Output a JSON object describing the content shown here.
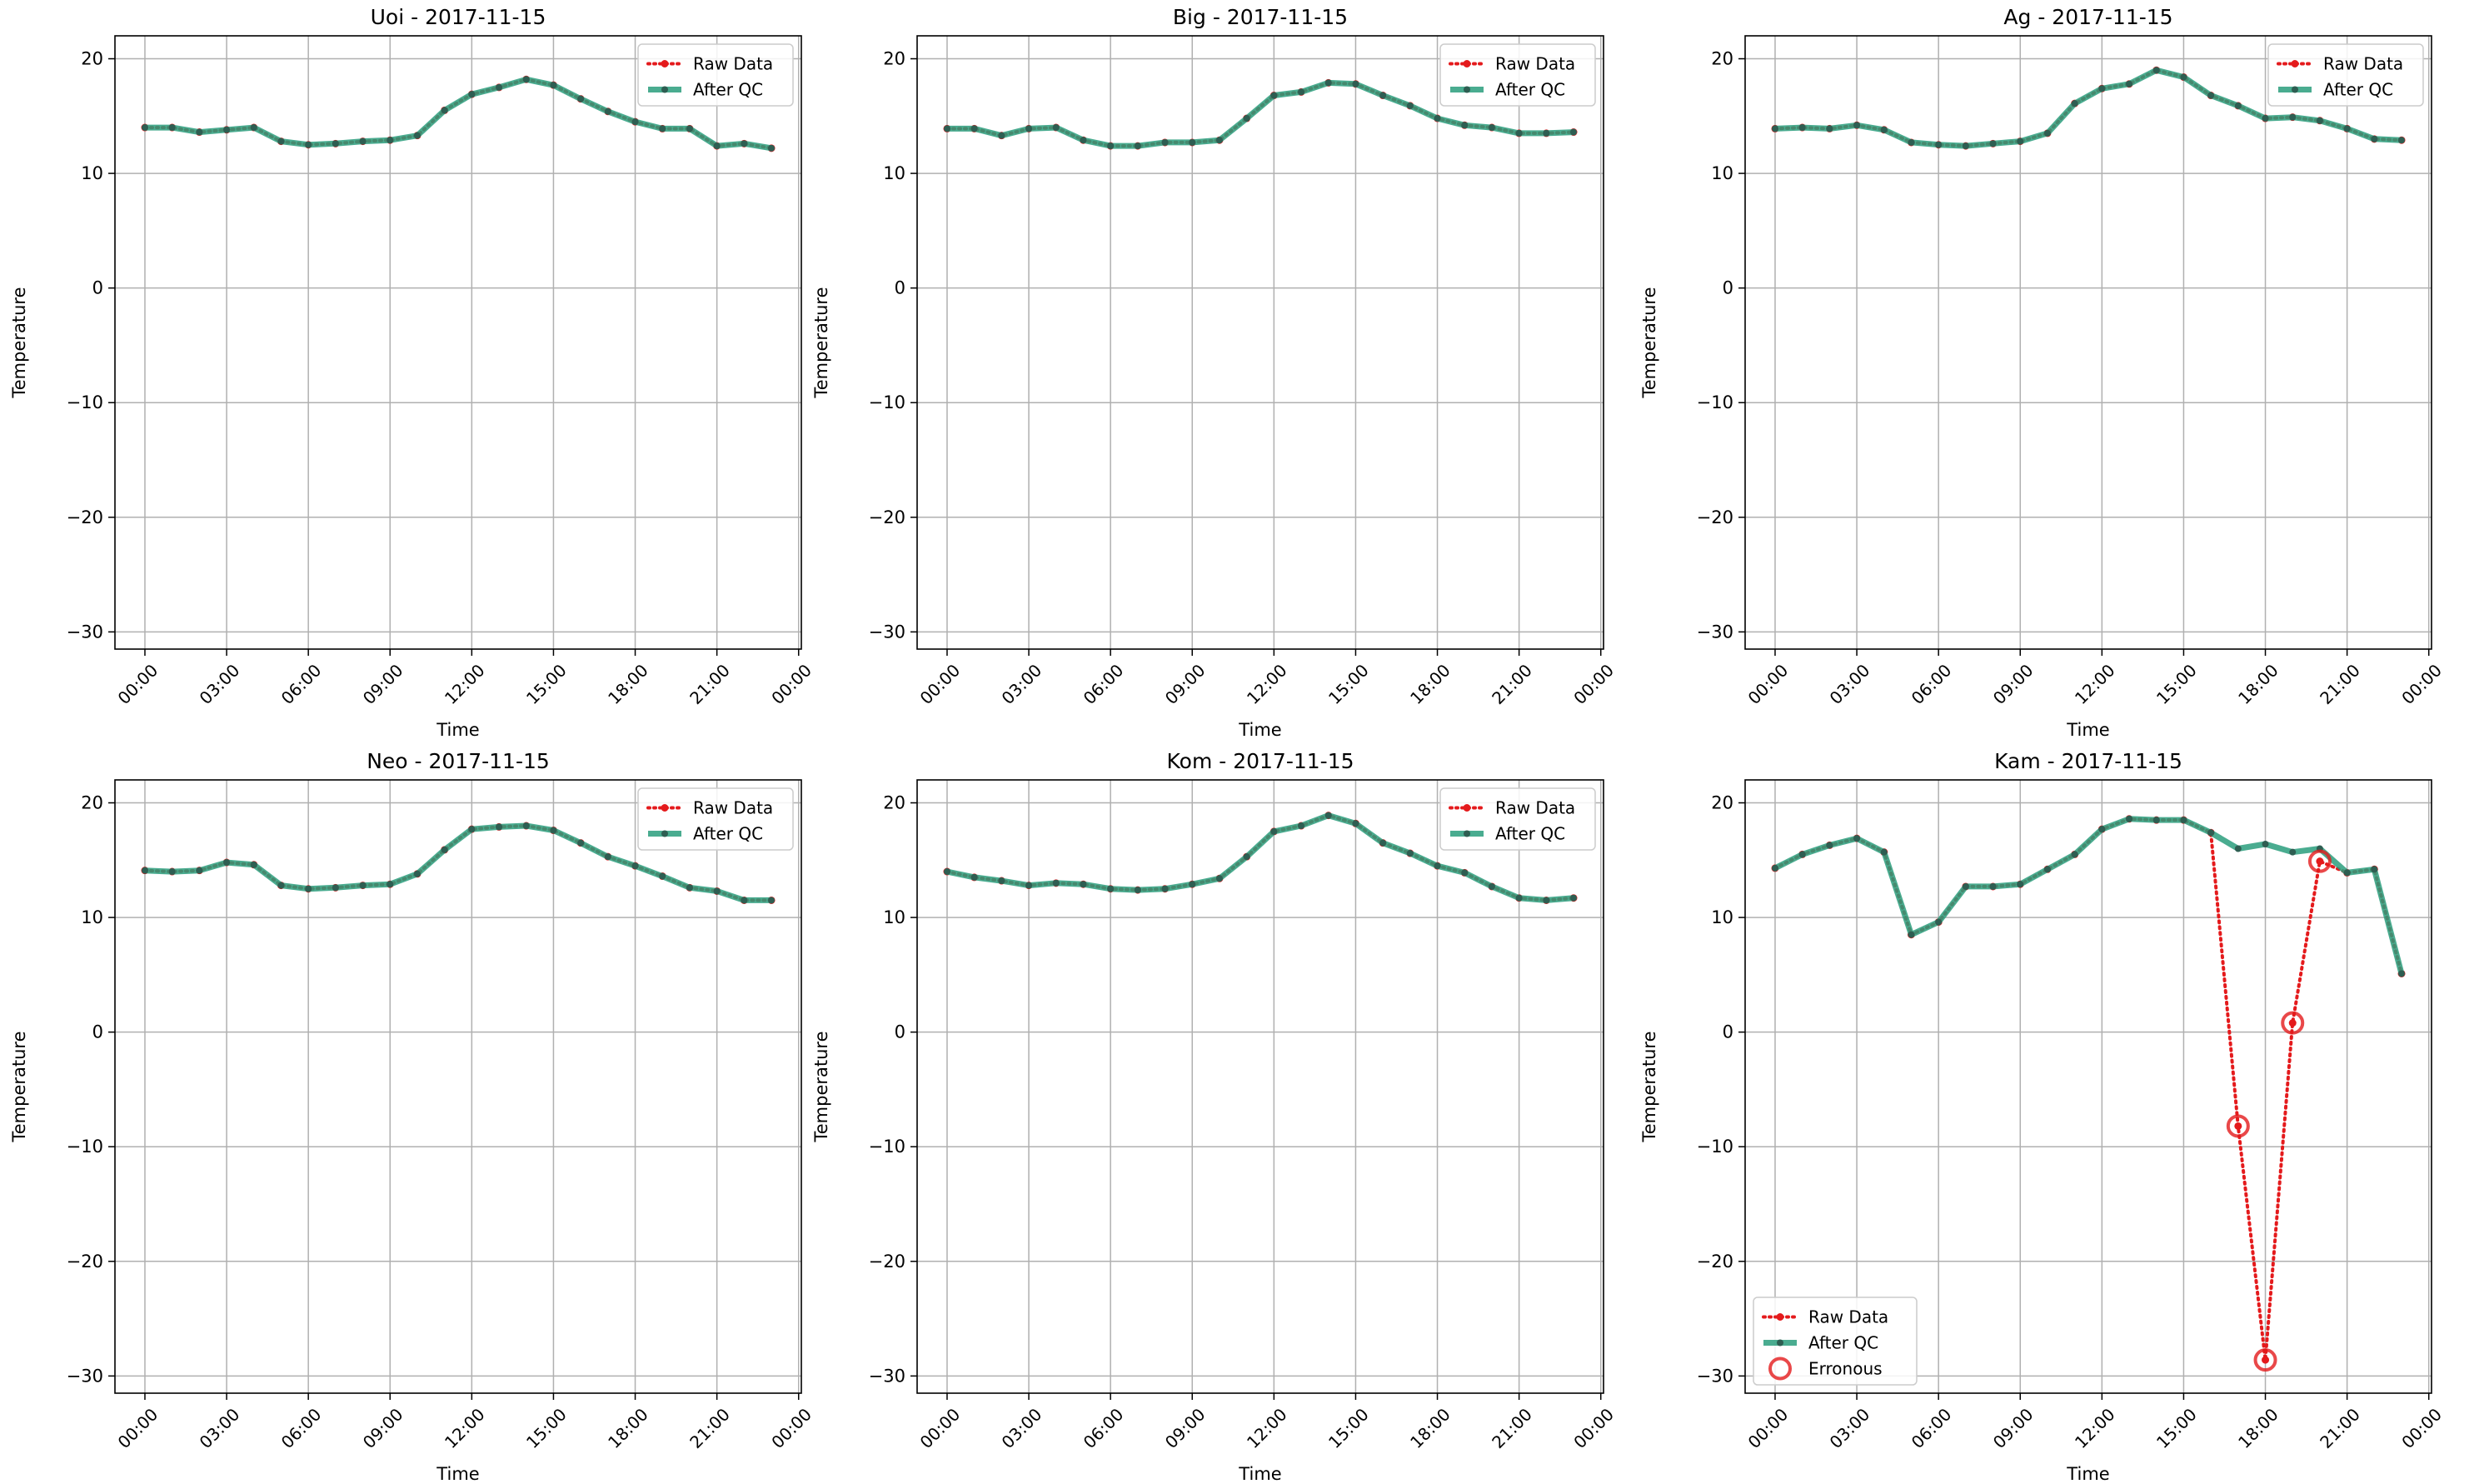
{
  "colors": {
    "raw": "#e41a1c",
    "qc": "#2a9d7c",
    "qc_marker": "#2e5e52",
    "erroneous": "#e41a1c",
    "grid": "#b0b0b0"
  },
  "legend_labels": {
    "raw": "Raw Data",
    "qc": "After QC",
    "erroneous": "Erronous"
  },
  "chart_data": [
    {
      "type": "line",
      "title": "Uoi - 2017-11-15",
      "xlabel": "Time",
      "ylabel": "Temperature",
      "xlim": [
        -1.1,
        24.1
      ],
      "ylim": [
        -31.5,
        22
      ],
      "x_ticks": [
        0,
        3,
        6,
        9,
        12,
        15,
        18,
        21,
        24
      ],
      "x_tick_labels": [
        "00:00",
        "03:00",
        "06:00",
        "09:00",
        "12:00",
        "15:00",
        "18:00",
        "21:00",
        "00:00"
      ],
      "y_ticks": [
        -30,
        -20,
        -10,
        0,
        10,
        20
      ],
      "y_tick_labels": [
        "−30",
        "−20",
        "−10",
        "0",
        "10",
        "20"
      ],
      "legend_position": "upper right",
      "grid": true,
      "hours": [
        0,
        1,
        2,
        3,
        4,
        5,
        6,
        7,
        8,
        9,
        10,
        11,
        12,
        13,
        14,
        15,
        16,
        17,
        18,
        19,
        20,
        21,
        22,
        23
      ],
      "series": [
        {
          "name": "Raw Data",
          "values": [
            14.0,
            14.0,
            13.6,
            13.8,
            14.0,
            12.8,
            12.5,
            12.6,
            12.8,
            12.9,
            13.3,
            15.5,
            16.9,
            17.5,
            18.2,
            17.7,
            16.5,
            15.4,
            14.5,
            13.9,
            13.9,
            12.4,
            12.6,
            12.2
          ]
        },
        {
          "name": "After QC",
          "values": [
            14.0,
            14.0,
            13.6,
            13.8,
            14.0,
            12.8,
            12.5,
            12.6,
            12.8,
            12.9,
            13.3,
            15.5,
            16.9,
            17.5,
            18.2,
            17.7,
            16.5,
            15.4,
            14.5,
            13.9,
            13.9,
            12.4,
            12.6,
            12.2
          ]
        }
      ],
      "erroneous": []
    },
    {
      "type": "line",
      "title": "Big - 2017-11-15",
      "xlabel": "Time",
      "ylabel": "Temperature",
      "xlim": [
        -1.1,
        24.1
      ],
      "ylim": [
        -31.5,
        22
      ],
      "x_ticks": [
        0,
        3,
        6,
        9,
        12,
        15,
        18,
        21,
        24
      ],
      "x_tick_labels": [
        "00:00",
        "03:00",
        "06:00",
        "09:00",
        "12:00",
        "15:00",
        "18:00",
        "21:00",
        "00:00"
      ],
      "y_ticks": [
        -30,
        -20,
        -10,
        0,
        10,
        20
      ],
      "y_tick_labels": [
        "−30",
        "−20",
        "−10",
        "0",
        "10",
        "20"
      ],
      "legend_position": "upper right",
      "grid": true,
      "hours": [
        0,
        1,
        2,
        3,
        4,
        5,
        6,
        7,
        8,
        9,
        10,
        11,
        12,
        13,
        14,
        15,
        16,
        17,
        18,
        19,
        20,
        21,
        22,
        23
      ],
      "series": [
        {
          "name": "Raw Data",
          "values": [
            13.9,
            13.9,
            13.3,
            13.9,
            14.0,
            12.9,
            12.4,
            12.4,
            12.7,
            12.7,
            12.9,
            14.8,
            16.8,
            17.1,
            17.9,
            17.8,
            16.8,
            15.9,
            14.8,
            14.2,
            14.0,
            13.5,
            13.5,
            13.6
          ]
        },
        {
          "name": "After QC",
          "values": [
            13.9,
            13.9,
            13.3,
            13.9,
            14.0,
            12.9,
            12.4,
            12.4,
            12.7,
            12.7,
            12.9,
            14.8,
            16.8,
            17.1,
            17.9,
            17.8,
            16.8,
            15.9,
            14.8,
            14.2,
            14.0,
            13.5,
            13.5,
            13.6
          ]
        }
      ],
      "erroneous": []
    },
    {
      "type": "line",
      "title": "Ag - 2017-11-15",
      "xlabel": "Time",
      "ylabel": "Temperature",
      "xlim": [
        -1.1,
        24.1
      ],
      "ylim": [
        -31.5,
        22
      ],
      "x_ticks": [
        0,
        3,
        6,
        9,
        12,
        15,
        18,
        21,
        24
      ],
      "x_tick_labels": [
        "00:00",
        "03:00",
        "06:00",
        "09:00",
        "12:00",
        "15:00",
        "18:00",
        "21:00",
        "00:00"
      ],
      "y_ticks": [
        -30,
        -20,
        -10,
        0,
        10,
        20
      ],
      "y_tick_labels": [
        "−30",
        "−20",
        "−10",
        "0",
        "10",
        "20"
      ],
      "legend_position": "upper right",
      "grid": true,
      "hours": [
        0,
        1,
        2,
        3,
        4,
        5,
        6,
        7,
        8,
        9,
        10,
        11,
        12,
        13,
        14,
        15,
        16,
        17,
        18,
        19,
        20,
        21,
        22,
        23
      ],
      "series": [
        {
          "name": "Raw Data",
          "values": [
            13.9,
            14.0,
            13.9,
            14.2,
            13.8,
            12.7,
            12.5,
            12.4,
            12.6,
            12.8,
            13.5,
            16.1,
            17.4,
            17.8,
            19.0,
            18.4,
            16.8,
            15.9,
            14.8,
            14.9,
            14.6,
            13.9,
            13.0,
            12.9
          ]
        },
        {
          "name": "After QC",
          "values": [
            13.9,
            14.0,
            13.9,
            14.2,
            13.8,
            12.7,
            12.5,
            12.4,
            12.6,
            12.8,
            13.5,
            16.1,
            17.4,
            17.8,
            19.0,
            18.4,
            16.8,
            15.9,
            14.8,
            14.9,
            14.6,
            13.9,
            13.0,
            12.9
          ]
        }
      ],
      "erroneous": []
    },
    {
      "type": "line",
      "title": "Neo - 2017-11-15",
      "xlabel": "Time",
      "ylabel": "Temperature",
      "xlim": [
        -1.1,
        24.1
      ],
      "ylim": [
        -31.5,
        22
      ],
      "x_ticks": [
        0,
        3,
        6,
        9,
        12,
        15,
        18,
        21,
        24
      ],
      "x_tick_labels": [
        "00:00",
        "03:00",
        "06:00",
        "09:00",
        "12:00",
        "15:00",
        "18:00",
        "21:00",
        "00:00"
      ],
      "y_ticks": [
        -30,
        -20,
        -10,
        0,
        10,
        20
      ],
      "y_tick_labels": [
        "−30",
        "−20",
        "−10",
        "0",
        "10",
        "20"
      ],
      "legend_position": "upper right",
      "grid": true,
      "hours": [
        0,
        1,
        2,
        3,
        4,
        5,
        6,
        7,
        8,
        9,
        10,
        11,
        12,
        13,
        14,
        15,
        16,
        17,
        18,
        19,
        20,
        21,
        22,
        23
      ],
      "series": [
        {
          "name": "Raw Data",
          "values": [
            14.1,
            14.0,
            14.1,
            14.8,
            14.6,
            12.8,
            12.5,
            12.6,
            12.8,
            12.9,
            13.8,
            15.9,
            17.7,
            17.9,
            18.0,
            17.6,
            16.5,
            15.3,
            14.5,
            13.6,
            12.6,
            12.3,
            11.5,
            11.5
          ]
        },
        {
          "name": "After QC",
          "values": [
            14.1,
            14.0,
            14.1,
            14.8,
            14.6,
            12.8,
            12.5,
            12.6,
            12.8,
            12.9,
            13.8,
            15.9,
            17.7,
            17.9,
            18.0,
            17.6,
            16.5,
            15.3,
            14.5,
            13.6,
            12.6,
            12.3,
            11.5,
            11.5
          ]
        }
      ],
      "erroneous": []
    },
    {
      "type": "line",
      "title": "Kom - 2017-11-15",
      "xlabel": "Time",
      "ylabel": "Temperature",
      "xlim": [
        -1.1,
        24.1
      ],
      "ylim": [
        -31.5,
        22
      ],
      "x_ticks": [
        0,
        3,
        6,
        9,
        12,
        15,
        18,
        21,
        24
      ],
      "x_tick_labels": [
        "00:00",
        "03:00",
        "06:00",
        "09:00",
        "12:00",
        "15:00",
        "18:00",
        "21:00",
        "00:00"
      ],
      "y_ticks": [
        -30,
        -20,
        -10,
        0,
        10,
        20
      ],
      "y_tick_labels": [
        "−30",
        "−20",
        "−10",
        "0",
        "10",
        "20"
      ],
      "legend_position": "upper right",
      "grid": true,
      "hours": [
        0,
        1,
        2,
        3,
        4,
        5,
        6,
        7,
        8,
        9,
        10,
        11,
        12,
        13,
        14,
        15,
        16,
        17,
        18,
        19,
        20,
        21,
        22,
        23
      ],
      "series": [
        {
          "name": "Raw Data",
          "values": [
            14.0,
            13.5,
            13.2,
            12.8,
            13.0,
            12.9,
            12.5,
            12.4,
            12.5,
            12.9,
            13.4,
            15.3,
            17.5,
            18.0,
            18.9,
            18.2,
            16.5,
            15.6,
            14.5,
            13.9,
            12.7,
            11.7,
            11.5,
            11.7
          ]
        },
        {
          "name": "After QC",
          "values": [
            14.0,
            13.5,
            13.2,
            12.8,
            13.0,
            12.9,
            12.5,
            12.4,
            12.5,
            12.9,
            13.4,
            15.3,
            17.5,
            18.0,
            18.9,
            18.2,
            16.5,
            15.6,
            14.5,
            13.9,
            12.7,
            11.7,
            11.5,
            11.7
          ]
        }
      ],
      "erroneous": []
    },
    {
      "type": "line",
      "title": "Kam - 2017-11-15",
      "xlabel": "Time",
      "ylabel": "Temperature",
      "xlim": [
        -1.1,
        24.1
      ],
      "ylim": [
        -31.5,
        22
      ],
      "x_ticks": [
        0,
        3,
        6,
        9,
        12,
        15,
        18,
        21,
        24
      ],
      "x_tick_labels": [
        "00:00",
        "03:00",
        "06:00",
        "09:00",
        "12:00",
        "15:00",
        "18:00",
        "21:00",
        "00:00"
      ],
      "y_ticks": [
        -30,
        -20,
        -10,
        0,
        10,
        20
      ],
      "y_tick_labels": [
        "−30",
        "−20",
        "−10",
        "0",
        "10",
        "20"
      ],
      "legend_position": "lower left",
      "grid": true,
      "hours": [
        0,
        1,
        2,
        3,
        4,
        5,
        6,
        7,
        8,
        9,
        10,
        11,
        12,
        13,
        14,
        15,
        16,
        17,
        18,
        19,
        20,
        21,
        22,
        23
      ],
      "series": [
        {
          "name": "Raw Data",
          "values": [
            14.3,
            15.5,
            16.3,
            16.9,
            15.7,
            8.5,
            9.6,
            12.7,
            12.7,
            12.9,
            14.2,
            15.5,
            17.7,
            18.6,
            18.5,
            18.5,
            17.4,
            -8.2,
            -28.6,
            0.8,
            14.9,
            13.9,
            14.2,
            5.1
          ]
        },
        {
          "name": "After QC",
          "values": [
            14.3,
            15.5,
            16.3,
            16.9,
            15.7,
            8.5,
            9.6,
            12.7,
            12.7,
            12.9,
            14.2,
            15.5,
            17.7,
            18.6,
            18.5,
            18.5,
            17.4,
            16.0,
            16.4,
            15.7,
            16.0,
            13.9,
            14.2,
            5.1
          ]
        }
      ],
      "erroneous": [
        {
          "x": 17,
          "y": -8.2
        },
        {
          "x": 18,
          "y": -28.6
        },
        {
          "x": 19,
          "y": 0.8
        },
        {
          "x": 20,
          "y": 14.9
        }
      ]
    }
  ]
}
